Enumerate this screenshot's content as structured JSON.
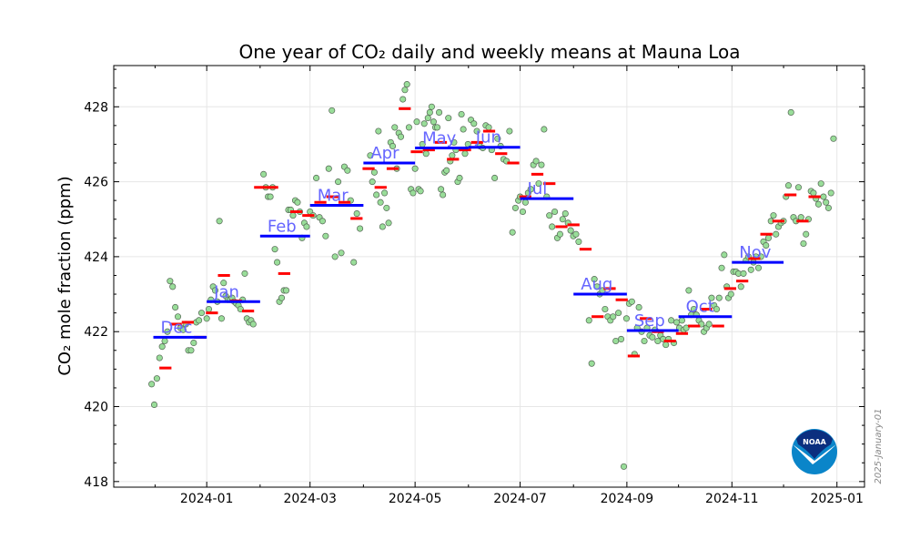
{
  "chart_data": {
    "type": "scatter",
    "title": "One year of CO₂ daily and weekly means at Mauna Loa",
    "xlabel": "",
    "ylabel": "CO₂ mole fraction (ppm)",
    "x_units": "days since 2024-01-01",
    "xlim": [
      -54,
      382
    ],
    "ylim": [
      417.85,
      429.1
    ],
    "yticks": [
      418,
      420,
      422,
      424,
      426,
      428
    ],
    "xticks": [
      {
        "day": 0,
        "label": "2024-01"
      },
      {
        "day": 60,
        "label": "2024-03"
      },
      {
        "day": 121,
        "label": "2024-05"
      },
      {
        "day": 182,
        "label": "2024-07"
      },
      {
        "day": 244,
        "label": "2024-09"
      },
      {
        "day": 305,
        "label": "2024-11"
      },
      {
        "day": 366,
        "label": "2025-01"
      }
    ],
    "x_minor_ticks": [
      -30,
      31,
      91,
      152,
      213,
      274,
      335
    ],
    "grid": true,
    "date_stamp": "2025-January-01",
    "logo_text": "NOAA",
    "colors": {
      "daily": "#99dd99",
      "daily_edge": "#556655",
      "weekly": "#ff0000",
      "monthly": "#0000ff",
      "month_label": "#6666ff"
    },
    "daily_groups": [
      {
        "start_day": -32,
        "end_day": -3,
        "values": [
          420.6,
          420.05,
          420.75,
          421.3,
          421.6,
          421.75,
          422.0,
          423.35,
          423.2,
          422.65,
          422.4,
          422.1,
          422.05,
          422.2,
          421.5,
          421.5,
          421.7,
          422.25,
          422.3,
          422.5
        ]
      },
      {
        "start_day": 0,
        "end_day": 27,
        "values": [
          422.35,
          422.6,
          422.85,
          423.2,
          423.1,
          422.8,
          424.95,
          422.35,
          423.3,
          422.95,
          422.85,
          422.85,
          422.9,
          422.8,
          422.75,
          422.7,
          422.6,
          422.85,
          423.55,
          422.35,
          422.25,
          422.3,
          422.2
        ]
      },
      {
        "start_day": 33,
        "end_day": 58,
        "values": [
          426.2,
          425.85,
          425.6,
          425.6,
          425.85,
          424.2,
          423.85,
          422.8,
          422.9,
          423.1,
          423.1,
          425.25,
          425.25,
          425.1,
          425.5,
          425.45,
          425.2,
          424.5,
          424.9,
          424.8
        ]
      },
      {
        "start_day": 60,
        "end_day": 89,
        "values": [
          425.2,
          425.1,
          426.1,
          425.05,
          424.95,
          424.55,
          426.35,
          427.9,
          424.0,
          426.0,
          424.1,
          426.4,
          426.3,
          425.5,
          423.85,
          425.15,
          424.75
        ]
      },
      {
        "start_day": 95,
        "end_day": 121,
        "values": [
          426.7,
          426.0,
          426.25,
          425.65,
          427.35,
          425.45,
          424.8,
          425.7,
          425.3,
          424.9,
          427.05,
          426.95,
          427.45,
          426.35,
          427.3,
          427.2,
          428.2,
          428.45,
          428.6,
          427.45,
          425.8,
          425.7,
          426.35
        ]
      },
      {
        "start_day": 122,
        "end_day": 149,
        "values": [
          427.6,
          425.8,
          425.75,
          427.0,
          427.55,
          426.75,
          427.7,
          427.85,
          428.0,
          427.6,
          427.45,
          427.45,
          427.85,
          425.8,
          425.65,
          426.25,
          426.3,
          427.7,
          426.55,
          426.7,
          427.05,
          426.85,
          426.0,
          426.1,
          427.8,
          427.4
        ]
      },
      {
        "start_day": 150,
        "end_day": 181,
        "values": [
          426.75,
          427.0,
          427.65,
          427.55,
          427.35,
          426.95,
          426.9,
          427.5,
          427.45,
          426.85,
          426.1,
          427.15,
          426.95,
          426.6,
          426.55,
          427.35,
          424.65,
          425.3,
          425.5
        ]
      },
      {
        "start_day": 182,
        "end_day": 216,
        "values": [
          425.6,
          425.2,
          425.45,
          425.7,
          425.8,
          426.45,
          426.55,
          425.95,
          426.45,
          427.4,
          425.6,
          425.1,
          424.8,
          425.2,
          424.5,
          424.6,
          425.0,
          425.15,
          424.9,
          424.7,
          424.55,
          424.6,
          424.4
        ]
      },
      {
        "start_day": 222,
        "end_day": 250,
        "values": [
          422.3,
          421.15,
          423.4,
          423.2,
          423.0,
          423.1,
          422.6,
          422.4,
          422.3,
          422.4,
          421.75,
          422.5,
          421.8,
          418.4,
          422.35,
          422.75,
          422.8,
          421.4,
          422.1
        ]
      },
      {
        "start_day": 251,
        "end_day": 276,
        "values": [
          422.65,
          422.0,
          421.75,
          422.1,
          421.9,
          421.85,
          422.05,
          421.75,
          421.9,
          421.8,
          421.65,
          421.8,
          422.3,
          421.7,
          422.25,
          422.1,
          422.3
        ]
      },
      {
        "start_day": 277,
        "end_day": 302,
        "values": [
          422.05,
          422.1,
          423.1,
          422.45,
          422.6,
          422.45,
          422.3,
          422.2,
          422.0,
          422.1,
          422.2,
          422.9,
          422.7,
          422.6,
          422.9,
          423.7,
          424.05,
          423.2
        ]
      },
      {
        "start_day": 303,
        "end_day": 364,
        "values": [
          422.9,
          423.0,
          423.6,
          423.6,
          423.55,
          423.2,
          423.55,
          423.9,
          424.0,
          423.65,
          423.85,
          424.0,
          423.7,
          424.0,
          424.4,
          424.3,
          424.5,
          424.95,
          425.1,
          424.6,
          424.8,
          424.9,
          424.95,
          425.6,
          425.9,
          427.85,
          425.05,
          424.95,
          425.85,
          425.05,
          424.35,
          424.6,
          425.0,
          425.75,
          425.7,
          425.55,
          425.4,
          425.95,
          425.6,
          425.45,
          425.3,
          425.7,
          427.15
        ]
      }
    ],
    "weekly": [
      [
        -24,
        421.03
      ],
      [
        -18,
        422.2
      ],
      [
        -11,
        422.25
      ],
      [
        -4,
        421.85
      ],
      [
        3,
        422.5
      ],
      [
        10,
        423.5
      ],
      [
        17,
        422.82
      ],
      [
        24,
        422.55
      ],
      [
        31,
        425.85
      ],
      [
        38,
        425.85
      ],
      [
        45,
        423.55
      ],
      [
        52,
        425.2
      ],
      [
        59,
        425.1
      ],
      [
        66,
        425.45
      ],
      [
        73,
        425.6
      ],
      [
        80,
        425.45
      ],
      [
        87,
        425.02
      ],
      [
        94,
        426.35
      ],
      [
        101,
        425.85
      ],
      [
        108,
        426.35
      ],
      [
        115,
        427.95
      ],
      [
        122,
        426.8
      ],
      [
        129,
        426.85
      ],
      [
        136,
        427.05
      ],
      [
        143,
        426.6
      ],
      [
        150,
        426.85
      ],
      [
        157,
        427.05
      ],
      [
        164,
        427.35
      ],
      [
        171,
        426.75
      ],
      [
        178,
        426.5
      ],
      [
        185,
        425.6
      ],
      [
        192,
        426.2
      ],
      [
        199,
        425.95
      ],
      [
        206,
        424.8
      ],
      [
        213,
        424.85
      ],
      [
        220,
        424.2
      ],
      [
        227,
        422.4
      ],
      [
        234,
        423.15
      ],
      [
        241,
        422.85
      ],
      [
        248,
        421.35
      ],
      [
        255,
        422.35
      ],
      [
        262,
        422.0
      ],
      [
        269,
        421.75
      ],
      [
        276,
        421.95
      ],
      [
        283,
        422.15
      ],
      [
        290,
        422.6
      ],
      [
        297,
        422.15
      ],
      [
        304,
        423.15
      ],
      [
        311,
        423.35
      ],
      [
        318,
        423.95
      ],
      [
        325,
        424.6
      ],
      [
        332,
        424.95
      ],
      [
        339,
        425.65
      ],
      [
        346,
        424.95
      ],
      [
        353,
        425.6
      ]
    ],
    "monthly": [
      {
        "label": "Dec",
        "start_day": -31,
        "end_day": 0,
        "value": 421.85
      },
      {
        "label": "Jan",
        "start_day": 0,
        "end_day": 31,
        "value": 422.8
      },
      {
        "label": "Feb",
        "start_day": 31,
        "end_day": 60,
        "value": 424.55
      },
      {
        "label": "Mar",
        "start_day": 60,
        "end_day": 91,
        "value": 425.37
      },
      {
        "label": "Apr",
        "start_day": 91,
        "end_day": 121,
        "value": 426.5
      },
      {
        "label": "May",
        "start_day": 121,
        "end_day": 152,
        "value": 426.9
      },
      {
        "label": "Jun",
        "start_day": 152,
        "end_day": 182,
        "value": 426.92
      },
      {
        "label": "Jul",
        "start_day": 182,
        "end_day": 213,
        "value": 425.55
      },
      {
        "label": "Aug",
        "start_day": 213,
        "end_day": 244,
        "value": 423.0
      },
      {
        "label": "Sep",
        "start_day": 244,
        "end_day": 274,
        "value": 422.03
      },
      {
        "label": "Oct",
        "start_day": 274,
        "end_day": 305,
        "value": 422.4
      },
      {
        "label": "Nov",
        "start_day": 305,
        "end_day": 335,
        "value": 423.85
      }
    ]
  }
}
